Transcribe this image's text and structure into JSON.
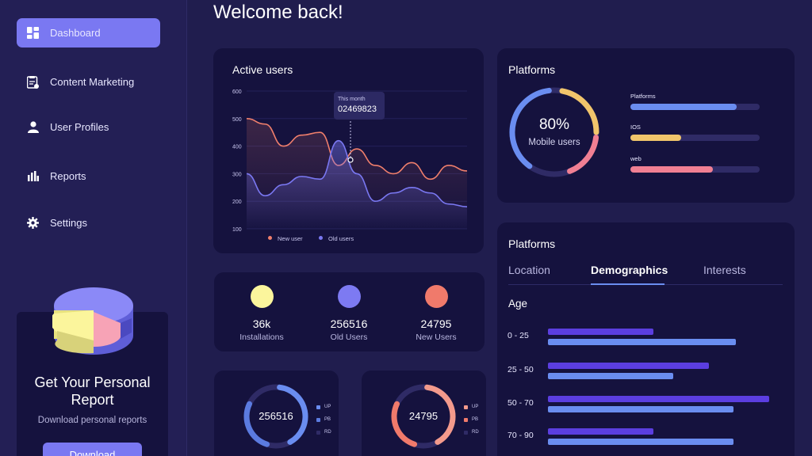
{
  "sidebar": {
    "items": [
      {
        "label": "Dashboard",
        "icon": "dashboard-icon",
        "active": true
      },
      {
        "label": "Content Marketing",
        "icon": "clipboard-icon",
        "active": false
      },
      {
        "label": "User Profiles",
        "icon": "user-icon",
        "active": false
      },
      {
        "label": "Reports",
        "icon": "bar-chart-icon",
        "active": false
      },
      {
        "label": "Settings",
        "icon": "gear-icon",
        "active": false
      }
    ],
    "report": {
      "title": "Get Your Personal Report",
      "subtitle": "Download personal reports",
      "button": "Download"
    }
  },
  "header": {
    "welcome": "Welcome back!"
  },
  "active_users": {
    "title": "Active users",
    "tooltip_label": "This month",
    "tooltip_value": "02469823",
    "legend": [
      "New user",
      "Old users"
    ]
  },
  "platforms_card": {
    "title": "Platforms",
    "donut_value": "80%",
    "donut_label": "Mobile users",
    "donut_fraction": 0.8,
    "bars": [
      {
        "label": "Platforms",
        "fraction": 0.82,
        "color": "#6a8df0"
      },
      {
        "label": "IOS",
        "fraction": 0.39,
        "color": "#f1c56b"
      },
      {
        "label": "web",
        "fraction": 0.64,
        "color": "#f07f93"
      }
    ]
  },
  "stats": [
    {
      "value": "36k",
      "label": "Installations",
      "color": "#fbf59c"
    },
    {
      "value": "256516",
      "label": "Old Users",
      "color": "#7d7af2"
    },
    {
      "value": "24795",
      "label": "New Users",
      "color": "#f07a6b"
    }
  ],
  "mini_donuts": [
    {
      "value": "256516",
      "legend": [
        "UP",
        "PB",
        "RD"
      ],
      "colors": [
        "#6a8df0",
        "#5b7be0",
        "#2f2b66"
      ]
    },
    {
      "value": "24795",
      "legend": [
        "UP",
        "PB",
        "RD"
      ],
      "colors": [
        "#f39a8c",
        "#f07a6b",
        "#2f2b66"
      ]
    }
  ],
  "demographics": {
    "title": "Platforms",
    "tabs": [
      "Location",
      "Demographics",
      "Interests"
    ],
    "active_tab": "Demographics",
    "section": "Age",
    "rows": [
      {
        "label": "0 - 25",
        "purple": 0.47,
        "blue": 0.84
      },
      {
        "label": "25 - 50",
        "purple": 0.72,
        "blue": 0.56
      },
      {
        "label": "50 - 70",
        "purple": 0.99,
        "blue": 0.83
      },
      {
        "label": "70 - 90",
        "purple": 0.47,
        "blue": 0.83
      }
    ]
  },
  "chart_data": {
    "type": "line",
    "title": "Active users",
    "ylim": [
      100,
      600
    ],
    "yticks": [
      "600",
      "500",
      "400",
      "300",
      "200",
      "100"
    ],
    "x": [
      0,
      1,
      2,
      3,
      4,
      5,
      6,
      7,
      8,
      9,
      10,
      11,
      12
    ],
    "series": [
      {
        "name": "New user",
        "color": "#f07f6c",
        "values": [
          500,
          480,
          400,
          440,
          450,
          330,
          390,
          330,
          300,
          340,
          280,
          330,
          310
        ]
      },
      {
        "name": "Old users",
        "color": "#7a78f2",
        "values": [
          300,
          220,
          260,
          290,
          280,
          420,
          300,
          200,
          230,
          250,
          230,
          190,
          180
        ]
      }
    ],
    "grid": true
  }
}
